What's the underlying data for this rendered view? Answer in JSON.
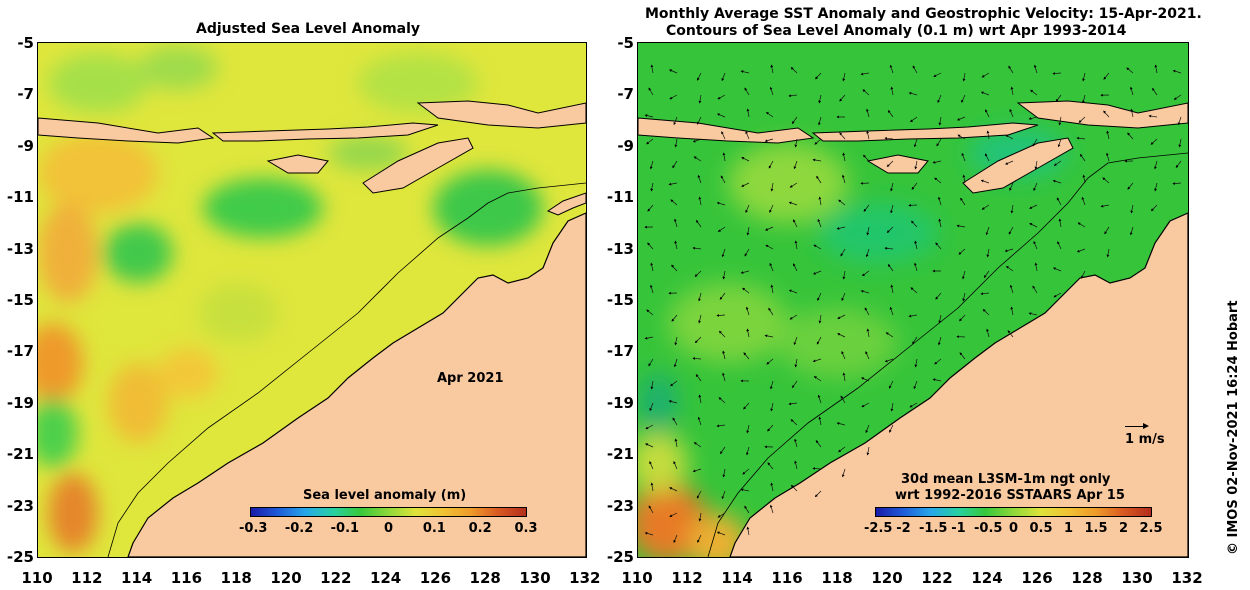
{
  "left_panel": {
    "title": "Adjusted Sea Level Anomaly",
    "date_label": "Apr 2021",
    "colorbar": {
      "title": "Sea level anomaly (m)",
      "ticks": [
        "-0.3",
        "-0.2",
        "-0.1",
        "0",
        "0.1",
        "0.2",
        "0.3"
      ],
      "range": [
        -0.3,
        0.3
      ]
    }
  },
  "right_panel": {
    "title_line1": "Monthly Average SST Anomaly  and Geostrophic Velocity: 15-Apr-2021.",
    "title_line2": "Contours of Sea Level Anomaly (0.1 m) wrt Apr 1993-2014",
    "scale_label": "1 m/s",
    "note_line1": "30d mean L3SM-1m ngt only",
    "note_line2": "wrt 1992-2016 SSTAARS Apr 15",
    "colorbar": {
      "ticks": [
        "-2.5",
        "-2",
        "-1.5",
        "-1",
        "-0.5",
        "0",
        "0.5",
        "1",
        "1.5",
        "2",
        "2.5"
      ],
      "range": [
        -2.5,
        2.5
      ]
    }
  },
  "axes": {
    "x_ticks": [
      "110",
      "112",
      "114",
      "116",
      "118",
      "120",
      "122",
      "124",
      "126",
      "128",
      "130",
      "132"
    ],
    "y_ticks": [
      "-5",
      "-7",
      "-9",
      "-11",
      "-13",
      "-15",
      "-17",
      "-19",
      "-21",
      "-23",
      "-25"
    ]
  },
  "credit": "© IMOS 02-Nov-2021 16:24 Hobart",
  "colors": {
    "land": "#f9c9a0",
    "ocean_left": "#e0e83a",
    "ocean_right": "#39c83a",
    "coast": "#000000"
  }
}
